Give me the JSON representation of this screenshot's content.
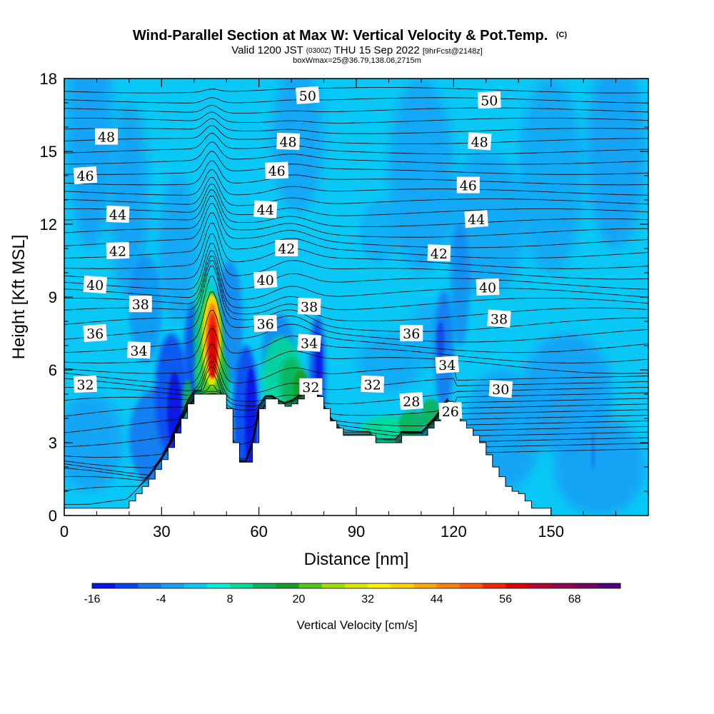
{
  "chart_data": {
    "type": "contour",
    "title": "Wind-Parallel Section at Max W: Vertical Velocity & Pot.Temp.",
    "title_mark": "(C)",
    "subtitle_parts": [
      "Valid 1200 JST",
      "(0300Z)",
      "THU 15 Sep 2022",
      "[9hrFcst@2148z]"
    ],
    "subtitle2": "boxWmax=25@36.79,138.06,2715m",
    "xlabel": "Distance [nm]",
    "ylabel": "Height [Kft MSL]",
    "xlim": [
      0,
      180
    ],
    "ylim": [
      0,
      18
    ],
    "xticks": [
      "0",
      "30",
      "60",
      "90",
      "120",
      "150"
    ],
    "yticks": [
      "0",
      "3",
      "6",
      "9",
      "12",
      "15",
      "18"
    ],
    "colorbar": {
      "label": "Vertical Velocity [cm/s]",
      "tick_labels": [
        "-16",
        "-4",
        "8",
        "20",
        "32",
        "44",
        "56",
        "68"
      ],
      "levels": [
        -16,
        -12,
        -8,
        -4,
        0,
        4,
        8,
        12,
        16,
        20,
        24,
        28,
        32,
        36,
        40,
        44,
        48,
        52,
        56,
        60,
        64,
        68,
        72
      ],
      "colors": [
        "#0a14e6",
        "#0a46f0",
        "#1478f0",
        "#14a0f5",
        "#0ac8f5",
        "#00f0dc",
        "#00dc96",
        "#0ab45a",
        "#14a028",
        "#50c814",
        "#a0dc00",
        "#dce600",
        "#fff000",
        "#ffd200",
        "#ffa800",
        "#ff8200",
        "#ff5a00",
        "#f02800",
        "#dc0000",
        "#b40032",
        "#960050",
        "#780064",
        "#50007d"
      ]
    },
    "contour_field": "Potential temperature",
    "contour_labels": [
      {
        "text": "50",
        "x": 75,
        "y": 17.3
      },
      {
        "text": "50",
        "x": 131,
        "y": 17.1
      },
      {
        "text": "48",
        "x": 13,
        "y": 15.6
      },
      {
        "text": "48",
        "x": 69,
        "y": 15.4
      },
      {
        "text": "48",
        "x": 128,
        "y": 15.4
      },
      {
        "text": "46",
        "x": 6.5,
        "y": 14.0
      },
      {
        "text": "46",
        "x": 65.5,
        "y": 14.2
      },
      {
        "text": "46",
        "x": 124.5,
        "y": 13.6
      },
      {
        "text": "44",
        "x": 16.5,
        "y": 12.4
      },
      {
        "text": "44",
        "x": 62,
        "y": 12.6
      },
      {
        "text": "44",
        "x": 127,
        "y": 12.2
      },
      {
        "text": "42",
        "x": 16.5,
        "y": 10.9
      },
      {
        "text": "42",
        "x": 68.5,
        "y": 11.0
      },
      {
        "text": "42",
        "x": 115.5,
        "y": 10.8
      },
      {
        "text": "40",
        "x": 9.5,
        "y": 9.5
      },
      {
        "text": "40",
        "x": 62,
        "y": 9.7
      },
      {
        "text": "40",
        "x": 130.5,
        "y": 9.4
      },
      {
        "text": "38",
        "x": 23.5,
        "y": 8.7
      },
      {
        "text": "38",
        "x": 75.5,
        "y": 8.6
      },
      {
        "text": "38",
        "x": 134,
        "y": 8.1
      },
      {
        "text": "36",
        "x": 9.5,
        "y": 7.5
      },
      {
        "text": "36",
        "x": 62,
        "y": 7.9
      },
      {
        "text": "36",
        "x": 107,
        "y": 7.5
      },
      {
        "text": "34",
        "x": 23,
        "y": 6.8
      },
      {
        "text": "34",
        "x": 75.5,
        "y": 7.1
      },
      {
        "text": "34",
        "x": 118,
        "y": 6.2
      },
      {
        "text": "32",
        "x": 6.5,
        "y": 5.4
      },
      {
        "text": "32",
        "x": 76,
        "y": 5.3
      },
      {
        "text": "32",
        "x": 95,
        "y": 5.4
      },
      {
        "text": "30",
        "x": 134.5,
        "y": 5.2
      },
      {
        "text": "28",
        "x": 107,
        "y": 4.7
      },
      {
        "text": "26",
        "x": 119,
        "y": 4.3
      }
    ],
    "terrain_approx": [
      [
        0,
        0.3
      ],
      [
        18,
        0.3
      ],
      [
        20,
        0.6
      ],
      [
        22,
        0.9
      ],
      [
        24,
        1.2
      ],
      [
        26,
        1.5
      ],
      [
        28,
        1.9
      ],
      [
        30,
        2.3
      ],
      [
        32,
        2.8
      ],
      [
        34,
        3.4
      ],
      [
        36,
        4.0
      ],
      [
        38,
        4.6
      ],
      [
        40,
        5.0
      ],
      [
        42,
        5.0
      ],
      [
        44,
        5.0
      ],
      [
        46,
        5.0
      ],
      [
        48,
        5.0
      ],
      [
        50,
        4.4
      ],
      [
        52,
        3.0
      ],
      [
        54,
        2.2
      ],
      [
        56,
        2.2
      ],
      [
        58,
        3.0
      ],
      [
        60,
        4.4
      ],
      [
        62,
        4.8
      ],
      [
        64,
        4.8
      ],
      [
        66,
        4.6
      ],
      [
        68,
        4.5
      ],
      [
        70,
        4.6
      ],
      [
        72,
        4.8
      ],
      [
        74,
        5.0
      ],
      [
        76,
        5.2
      ],
      [
        78,
        4.9
      ],
      [
        80,
        4.4
      ],
      [
        82,
        3.9
      ],
      [
        84,
        3.6
      ],
      [
        86,
        3.3
      ],
      [
        88,
        3.3
      ],
      [
        90,
        3.3
      ],
      [
        92,
        3.3
      ],
      [
        94,
        3.3
      ],
      [
        96,
        3.0
      ],
      [
        98,
        3.0
      ],
      [
        100,
        3.0
      ],
      [
        102,
        3.0
      ],
      [
        104,
        3.3
      ],
      [
        106,
        3.3
      ],
      [
        108,
        3.3
      ],
      [
        110,
        3.3
      ],
      [
        112,
        3.6
      ],
      [
        114,
        3.9
      ],
      [
        116,
        4.3
      ],
      [
        118,
        4.7
      ],
      [
        120,
        4.3
      ],
      [
        122,
        3.9
      ],
      [
        124,
        3.6
      ],
      [
        126,
        3.3
      ],
      [
        128,
        3.0
      ],
      [
        130,
        2.5
      ],
      [
        132,
        2.0
      ],
      [
        134,
        1.6
      ],
      [
        136,
        1.2
      ],
      [
        138,
        1.0
      ],
      [
        140,
        0.9
      ],
      [
        142,
        0.6
      ],
      [
        144,
        0.3
      ],
      [
        146,
        0.3
      ],
      [
        148,
        0.3
      ],
      [
        150,
        0.0
      ],
      [
        180,
        0.0
      ]
    ]
  }
}
